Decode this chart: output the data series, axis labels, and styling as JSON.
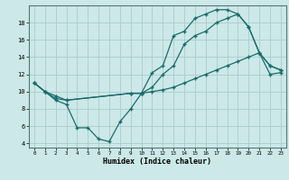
{
  "xlabel": "Humidex (Indice chaleur)",
  "xlim": [
    -0.5,
    23.5
  ],
  "ylim": [
    3.5,
    20
  ],
  "yticks": [
    4,
    6,
    8,
    10,
    12,
    14,
    16,
    18
  ],
  "xticks": [
    0,
    1,
    2,
    3,
    4,
    5,
    6,
    7,
    8,
    9,
    10,
    11,
    12,
    13,
    14,
    15,
    16,
    17,
    18,
    19,
    20,
    21,
    22,
    23
  ],
  "bg_color": "#cce8e8",
  "grid_color": "#aacccc",
  "line_color": "#1a6b6b",
  "line1_x": [
    0,
    1,
    2,
    3,
    4,
    5,
    6,
    7,
    8,
    9,
    10,
    11,
    12,
    13,
    14,
    15,
    16,
    17,
    18,
    19,
    20,
    21,
    22,
    23
  ],
  "line1_y": [
    11,
    10,
    9,
    8.5,
    5.8,
    5.8,
    4.5,
    4.2,
    6.5,
    8,
    9.8,
    12.2,
    13,
    16.5,
    17,
    18.5,
    19,
    19.5,
    19.5,
    19,
    17.5,
    14.5,
    13,
    12.5
  ],
  "line2_x": [
    0,
    1,
    2,
    3,
    9,
    10,
    11,
    12,
    13,
    14,
    15,
    16,
    17,
    18,
    19,
    20,
    21,
    22,
    23
  ],
  "line2_y": [
    11,
    10,
    9.5,
    9,
    9.8,
    9.8,
    10.5,
    12,
    13,
    15.5,
    16.5,
    17,
    18,
    18.5,
    19,
    17.5,
    14.5,
    13,
    12.5
  ],
  "line3_x": [
    0,
    1,
    2,
    3,
    9,
    10,
    11,
    12,
    13,
    14,
    15,
    16,
    17,
    18,
    19,
    20,
    21,
    22,
    23
  ],
  "line3_y": [
    11,
    10,
    9.2,
    9,
    9.8,
    9.8,
    10,
    10.2,
    10.5,
    11,
    11.5,
    12,
    12.5,
    13,
    13.5,
    14,
    14.5,
    12,
    12.2
  ]
}
